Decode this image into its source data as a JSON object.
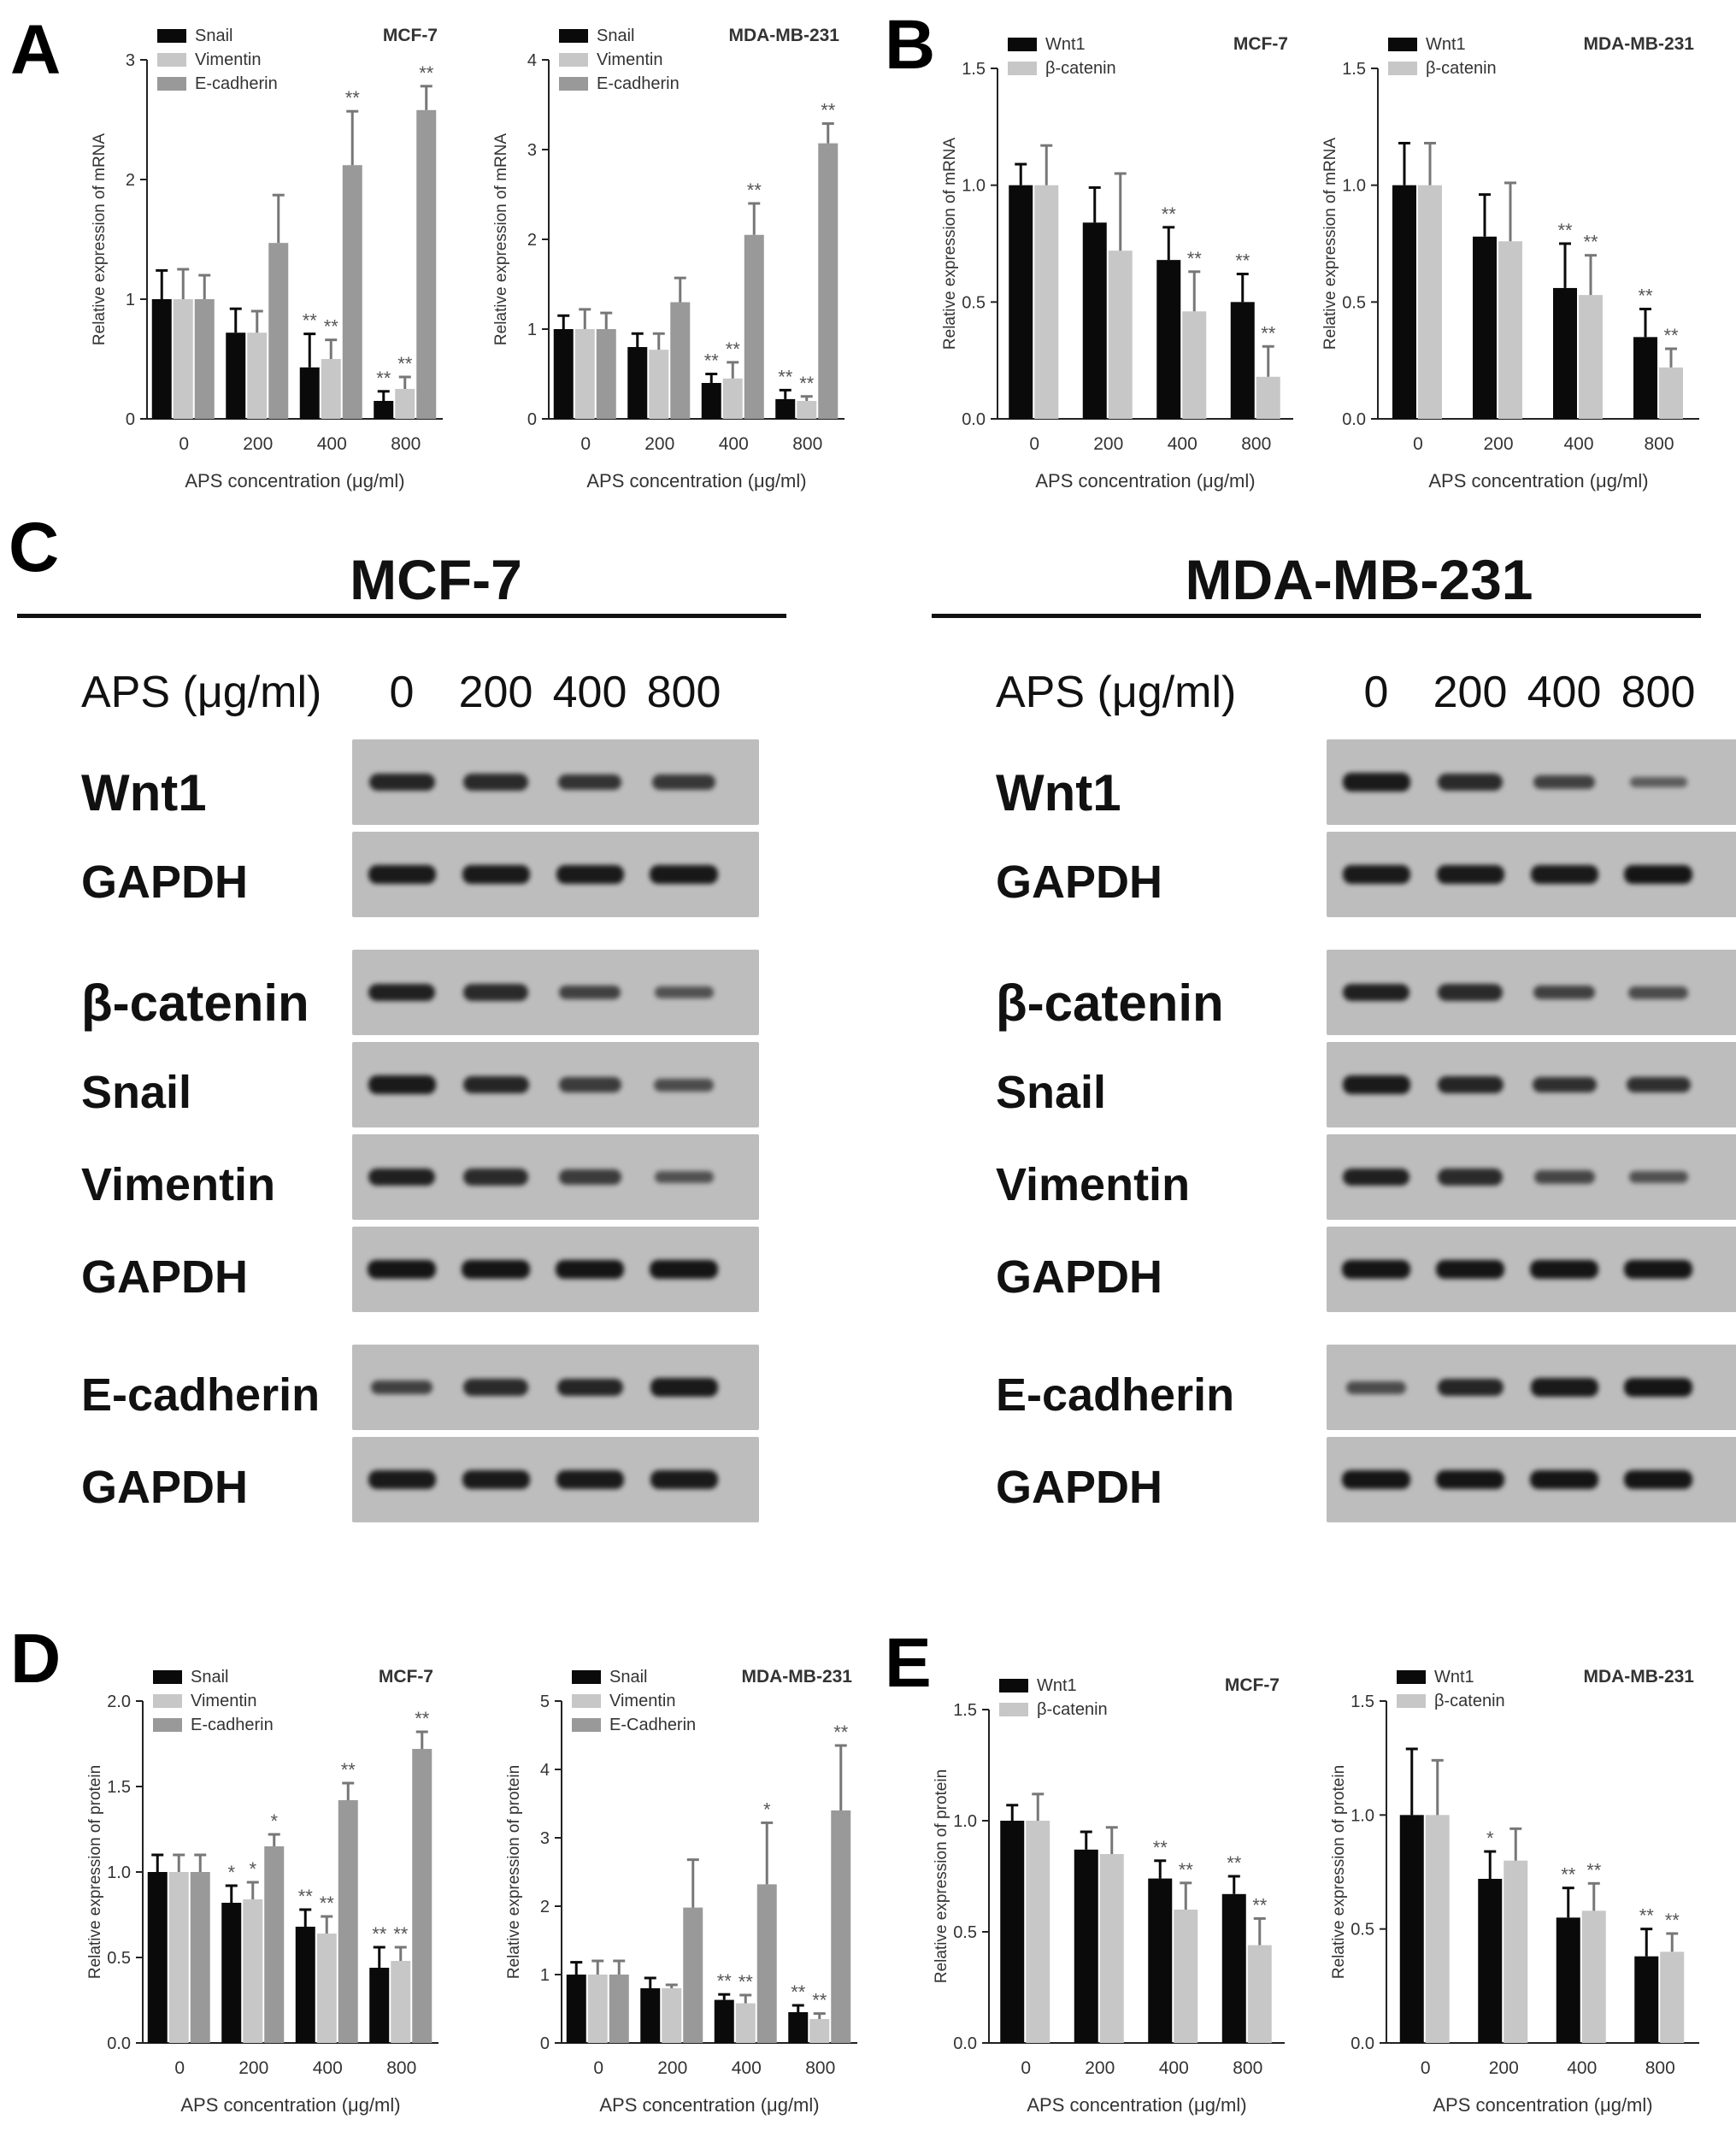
{
  "panel_labels": [
    "A",
    "B",
    "C",
    "D",
    "E"
  ],
  "colors": {
    "black": "#0a0a0a",
    "light_gray": "#c7c7c7",
    "mid_gray": "#999999",
    "blot_bg": "#bdbdbd",
    "band": "#151515"
  },
  "chart_data": [
    {
      "panel": "A",
      "type": "bar",
      "cell_line": "MCF-7",
      "categories": [
        "0",
        "200",
        "400",
        "800"
      ],
      "xlabel": "APS concentration (μg/ml)",
      "ylabel": "Relative expression of mRNA",
      "ylim": [
        0,
        3
      ],
      "yticks": [
        "0",
        "1",
        "2",
        "3"
      ],
      "legend": "top-left",
      "grid": false,
      "series": [
        {
          "name": "Snail",
          "color": "#0a0a0a",
          "values": [
            1.0,
            0.72,
            0.43,
            0.15
          ],
          "errors": [
            0.24,
            0.2,
            0.28,
            0.08
          ],
          "sig": [
            "",
            "",
            "**",
            "**"
          ]
        },
        {
          "name": "Vimentin",
          "color": "#c7c7c7",
          "values": [
            1.0,
            0.72,
            0.5,
            0.25
          ],
          "errors": [
            0.25,
            0.18,
            0.16,
            0.1
          ],
          "sig": [
            "",
            "",
            "**",
            "**"
          ]
        },
        {
          "name": "E-cadherin",
          "color": "#999999",
          "values": [
            1.0,
            1.47,
            2.12,
            2.58
          ],
          "errors": [
            0.2,
            0.4,
            0.45,
            0.2
          ],
          "sig": [
            "",
            "",
            "**",
            "**"
          ]
        }
      ]
    },
    {
      "panel": "A",
      "type": "bar",
      "cell_line": "MDA-MB-231",
      "categories": [
        "0",
        "200",
        "400",
        "800"
      ],
      "xlabel": "APS concentration (μg/ml)",
      "ylabel": "Relative expression of mRNA",
      "ylim": [
        0,
        4
      ],
      "yticks": [
        "0",
        "1",
        "2",
        "3",
        "4"
      ],
      "legend": "top-left",
      "grid": false,
      "series": [
        {
          "name": "Snail",
          "color": "#0a0a0a",
          "values": [
            1.0,
            0.8,
            0.4,
            0.22
          ],
          "errors": [
            0.15,
            0.15,
            0.1,
            0.1
          ],
          "sig": [
            "",
            "",
            "**",
            "**"
          ]
        },
        {
          "name": "Vimentin",
          "color": "#c7c7c7",
          "values": [
            1.0,
            0.77,
            0.45,
            0.2
          ],
          "errors": [
            0.22,
            0.18,
            0.18,
            0.05
          ],
          "sig": [
            "",
            "",
            "**",
            "**"
          ]
        },
        {
          "name": "E-cadherin",
          "color": "#999999",
          "values": [
            1.0,
            1.3,
            2.05,
            3.07
          ],
          "errors": [
            0.18,
            0.27,
            0.35,
            0.22
          ],
          "sig": [
            "",
            "",
            "**",
            "**"
          ]
        }
      ]
    },
    {
      "panel": "B",
      "type": "bar",
      "cell_line": "MCF-7",
      "categories": [
        "0",
        "200",
        "400",
        "800"
      ],
      "xlabel": "APS concentration (μg/ml)",
      "ylabel": "Relative expression of mRNA",
      "ylim": [
        0,
        1.5
      ],
      "yticks": [
        "0.0",
        "0.5",
        "1.0",
        "1.5"
      ],
      "legend": "top-left",
      "grid": false,
      "series": [
        {
          "name": "Wnt1",
          "color": "#0a0a0a",
          "values": [
            1.0,
            0.84,
            0.68,
            0.5
          ],
          "errors": [
            0.09,
            0.15,
            0.14,
            0.12
          ],
          "sig": [
            "",
            "",
            "**",
            "**"
          ]
        },
        {
          "name": "β-catenin",
          "color": "#c7c7c7",
          "values": [
            1.0,
            0.72,
            0.46,
            0.18
          ],
          "errors": [
            0.17,
            0.33,
            0.17,
            0.13
          ],
          "sig": [
            "",
            "",
            "**",
            "**"
          ]
        }
      ]
    },
    {
      "panel": "B",
      "type": "bar",
      "cell_line": "MDA-MB-231",
      "categories": [
        "0",
        "200",
        "400",
        "800"
      ],
      "xlabel": "APS concentration (μg/ml)",
      "ylabel": "Relative expression of mRNA",
      "ylim": [
        0,
        1.5
      ],
      "yticks": [
        "0.0",
        "0.5",
        "1.0",
        "1.5"
      ],
      "legend": "top-left",
      "grid": false,
      "series": [
        {
          "name": "Wnt1",
          "color": "#0a0a0a",
          "values": [
            1.0,
            0.78,
            0.56,
            0.35
          ],
          "errors": [
            0.18,
            0.18,
            0.19,
            0.12
          ],
          "sig": [
            "",
            "",
            "**",
            "**"
          ]
        },
        {
          "name": "β-catenin",
          "color": "#c7c7c7",
          "values": [
            1.0,
            0.76,
            0.53,
            0.22
          ],
          "errors": [
            0.18,
            0.25,
            0.17,
            0.08
          ],
          "sig": [
            "",
            "",
            "**",
            "**"
          ]
        }
      ]
    },
    {
      "panel": "D",
      "type": "bar",
      "cell_line": "MCF-7",
      "categories": [
        "0",
        "200",
        "400",
        "800"
      ],
      "xlabel": "APS concentration (μg/ml)",
      "ylabel": "Relative expression of protein",
      "ylim": [
        0,
        2.0
      ],
      "yticks": [
        "0.0",
        "0.5",
        "1.0",
        "1.5",
        "2.0"
      ],
      "legend": "top-left",
      "grid": false,
      "series": [
        {
          "name": "Snail",
          "color": "#0a0a0a",
          "values": [
            1.0,
            0.82,
            0.68,
            0.44
          ],
          "errors": [
            0.1,
            0.1,
            0.1,
            0.12
          ],
          "sig": [
            "",
            "*",
            "**",
            "**"
          ]
        },
        {
          "name": "Vimentin",
          "color": "#c7c7c7",
          "values": [
            1.0,
            0.84,
            0.64,
            0.48
          ],
          "errors": [
            0.1,
            0.1,
            0.1,
            0.08
          ],
          "sig": [
            "",
            "*",
            "**",
            "**"
          ]
        },
        {
          "name": "E-cadherin",
          "color": "#999999",
          "values": [
            1.0,
            1.15,
            1.42,
            1.72
          ],
          "errors": [
            0.1,
            0.07,
            0.1,
            0.1
          ],
          "sig": [
            "",
            "*",
            "**",
            "**"
          ]
        }
      ]
    },
    {
      "panel": "D",
      "type": "bar",
      "cell_line": "MDA-MB-231",
      "categories": [
        "0",
        "200",
        "400",
        "800"
      ],
      "xlabel": "APS concentration (μg/ml)",
      "ylabel": "Relative expression of protein",
      "ylim": [
        0,
        5
      ],
      "yticks": [
        "0",
        "1",
        "2",
        "3",
        "4",
        "5"
      ],
      "legend": "top-left",
      "grid": false,
      "series": [
        {
          "name": "Snail",
          "color": "#0a0a0a",
          "values": [
            1.0,
            0.8,
            0.63,
            0.45
          ],
          "errors": [
            0.18,
            0.15,
            0.08,
            0.1
          ],
          "sig": [
            "",
            "",
            "**",
            "**"
          ]
        },
        {
          "name": "Vimentin",
          "color": "#c7c7c7",
          "values": [
            1.0,
            0.8,
            0.58,
            0.35
          ],
          "errors": [
            0.2,
            0.05,
            0.12,
            0.08
          ],
          "sig": [
            "",
            "",
            "**",
            "**"
          ]
        },
        {
          "name": "E-Cadherin",
          "color": "#999999",
          "values": [
            1.0,
            1.98,
            2.32,
            3.4
          ],
          "errors": [
            0.2,
            0.7,
            0.9,
            0.95
          ],
          "sig": [
            "",
            "",
            "*",
            "**"
          ]
        }
      ]
    },
    {
      "panel": "E",
      "type": "bar",
      "cell_line": "MCF-7",
      "categories": [
        "0",
        "200",
        "400",
        "800"
      ],
      "xlabel": "APS concentration (μg/ml)",
      "ylabel": "Relative expression of protein",
      "ylim": [
        0,
        1.5
      ],
      "yticks": [
        "0.0",
        "0.5",
        "1.0",
        "1.5"
      ],
      "legend": "top-left",
      "grid": false,
      "series": [
        {
          "name": "Wnt1",
          "color": "#0a0a0a",
          "values": [
            1.0,
            0.87,
            0.74,
            0.67
          ],
          "errors": [
            0.07,
            0.08,
            0.08,
            0.08
          ],
          "sig": [
            "",
            "",
            "**",
            "**"
          ]
        },
        {
          "name": "β-catenin",
          "color": "#c7c7c7",
          "values": [
            1.0,
            0.85,
            0.6,
            0.44
          ],
          "errors": [
            0.12,
            0.12,
            0.12,
            0.12
          ],
          "sig": [
            "",
            "",
            "**",
            "**"
          ]
        }
      ]
    },
    {
      "panel": "E",
      "type": "bar",
      "cell_line": "MDA-MB-231",
      "categories": [
        "0",
        "200",
        "400",
        "800"
      ],
      "xlabel": "APS concentration (μg/ml)",
      "ylabel": "Relative expression of protein",
      "ylim": [
        0,
        1.5
      ],
      "yticks": [
        "0.0",
        "0.5",
        "1.0",
        "1.5"
      ],
      "legend": "top-left",
      "grid": false,
      "series": [
        {
          "name": "Wnt1",
          "color": "#0a0a0a",
          "values": [
            1.0,
            0.72,
            0.55,
            0.38
          ],
          "errors": [
            0.29,
            0.12,
            0.13,
            0.12
          ],
          "sig": [
            "",
            "*",
            "**",
            "**"
          ]
        },
        {
          "name": "β-catenin",
          "color": "#c7c7c7",
          "values": [
            1.0,
            0.8,
            0.58,
            0.4
          ],
          "errors": [
            0.24,
            0.14,
            0.12,
            0.08
          ],
          "sig": [
            "",
            "",
            "**",
            "**"
          ]
        }
      ]
    }
  ],
  "western_blot": [
    {
      "cell_line": "MCF-7",
      "dose_header": "APS (μg/ml)",
      "doses": [
        "0",
        "200",
        "400",
        "800"
      ],
      "blocks": [
        {
          "rows": [
            {
              "label": "Wnt1",
              "intensity": [
                0.85,
                0.8,
                0.72,
                0.68
              ]
            },
            {
              "label": "GAPDH",
              "intensity": [
                0.95,
                0.95,
                0.95,
                0.97
              ]
            }
          ]
        },
        {
          "rows": [
            {
              "label": "β-catenin",
              "intensity": [
                0.9,
                0.8,
                0.6,
                0.45
              ]
            },
            {
              "label": "Snail",
              "intensity": [
                0.95,
                0.85,
                0.65,
                0.5
              ]
            },
            {
              "label": "Vimentin",
              "intensity": [
                0.9,
                0.8,
                0.65,
                0.45
              ]
            },
            {
              "label": "GAPDH",
              "intensity": [
                1.0,
                1.0,
                1.0,
                1.0
              ]
            }
          ]
        },
        {
          "rows": [
            {
              "label": "E-cadherin",
              "intensity": [
                0.6,
                0.8,
                0.85,
                0.95
              ]
            },
            {
              "label": "GAPDH",
              "intensity": [
                0.95,
                0.95,
                0.95,
                0.95
              ]
            }
          ]
        }
      ]
    },
    {
      "cell_line": "MDA-MB-231",
      "dose_header": "APS (μg/ml)",
      "doses": [
        "0",
        "200",
        "400",
        "800"
      ],
      "blocks": [
        {
          "rows": [
            {
              "label": "Wnt1",
              "intensity": [
                0.95,
                0.8,
                0.6,
                0.35
              ]
            },
            {
              "label": "GAPDH",
              "intensity": [
                0.95,
                0.95,
                0.95,
                1.0
              ]
            }
          ]
        },
        {
          "rows": [
            {
              "label": "β-catenin",
              "intensity": [
                0.9,
                0.8,
                0.6,
                0.5
              ]
            },
            {
              "label": "Snail",
              "intensity": [
                0.95,
                0.85,
                0.75,
                0.75
              ]
            },
            {
              "label": "Vimentin",
              "intensity": [
                0.9,
                0.8,
                0.55,
                0.45
              ]
            },
            {
              "label": "GAPDH",
              "intensity": [
                1.0,
                1.0,
                1.0,
                1.0
              ]
            }
          ]
        },
        {
          "rows": [
            {
              "label": "E-cadherin",
              "intensity": [
                0.5,
                0.85,
                0.95,
                1.0
              ]
            },
            {
              "label": "GAPDH",
              "intensity": [
                1.0,
                1.0,
                1.0,
                1.0
              ]
            }
          ]
        }
      ]
    }
  ]
}
